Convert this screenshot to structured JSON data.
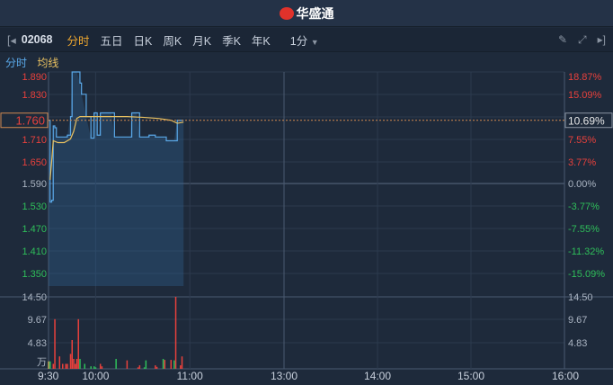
{
  "header": {
    "brand": "华盛通"
  },
  "toolbar": {
    "code": "02068",
    "tabs": [
      "分时",
      "五日",
      "日K",
      "周K",
      "月K",
      "季K",
      "年K"
    ],
    "active": "分时",
    "interval": "1分",
    "icons": [
      "collapse-left-icon",
      "pencil-icon",
      "fullscreen-icon",
      "expand-right-icon"
    ]
  },
  "legend": {
    "price": "分时",
    "avg": "均线"
  },
  "colors": {
    "up": "#e8413c",
    "down": "#2fbf5a",
    "price_line": "#5aa8e8",
    "avg_line": "#e8c060",
    "accent": "#f0a830"
  },
  "chart_data": {
    "type": "line",
    "price_axis": {
      "labels": [
        "1.890",
        "1.830",
        "1.770",
        "1.710",
        "1.650",
        "1.590",
        "1.530",
        "1.470",
        "1.410",
        "1.350"
      ],
      "prev_close": 1.59,
      "range": [
        1.35,
        1.9
      ]
    },
    "pct_axis": {
      "labels": [
        "18.87%",
        "15.09%",
        "11.32%",
        "7.55%",
        "3.77%",
        "0.00%",
        "-3.77%",
        "-7.55%",
        "-11.32%",
        "-15.09%"
      ]
    },
    "current": {
      "price": "1.760",
      "pct": "10.69%"
    },
    "x_ticks": [
      "9:30",
      "10:00",
      "11:00",
      "13:00",
      "14:00",
      "15:00",
      "16:00"
    ],
    "price": [
      [
        "9:30",
        1.76
      ],
      [
        "9:31",
        1.54
      ],
      [
        "9:32",
        1.545
      ],
      [
        "9:33",
        1.745
      ],
      [
        "9:34",
        1.74
      ],
      [
        "9:35",
        1.715
      ],
      [
        "9:40",
        1.715
      ],
      [
        "9:42",
        1.72
      ],
      [
        "9:44",
        1.77
      ],
      [
        "9:45",
        1.89
      ],
      [
        "9:48",
        1.89
      ],
      [
        "9:50",
        1.86
      ],
      [
        "9:51",
        1.83
      ],
      [
        "9:54",
        1.77
      ],
      [
        "9:57",
        1.712
      ],
      [
        "9:59",
        1.78
      ],
      [
        "10:00",
        1.78
      ],
      [
        "10:01",
        1.72
      ],
      [
        "10:02",
        1.72
      ],
      [
        "10:03",
        1.78
      ],
      [
        "10:10",
        1.78
      ],
      [
        "10:12",
        1.715
      ],
      [
        "10:22",
        1.715
      ],
      [
        "10:23",
        1.78
      ],
      [
        "10:26",
        1.78
      ],
      [
        "10:28",
        1.715
      ],
      [
        "10:32",
        1.715
      ],
      [
        "10:34",
        1.72
      ],
      [
        "10:36",
        1.72
      ],
      [
        "10:38",
        1.715
      ],
      [
        "10:44",
        1.715
      ],
      [
        "10:45",
        1.705
      ],
      [
        "10:50",
        1.705
      ],
      [
        "10:52",
        1.76
      ],
      [
        "10:56",
        1.76
      ]
    ],
    "avg": [
      [
        "9:31",
        1.6
      ],
      [
        "9:32",
        1.65
      ],
      [
        "9:33",
        1.705
      ],
      [
        "9:36",
        1.7
      ],
      [
        "9:40",
        1.7
      ],
      [
        "9:44",
        1.71
      ],
      [
        "9:46",
        1.73
      ],
      [
        "9:48",
        1.765
      ],
      [
        "9:50",
        1.77
      ],
      [
        "10:20",
        1.77
      ],
      [
        "10:30",
        1.768
      ],
      [
        "10:40",
        1.765
      ],
      [
        "10:48",
        1.76
      ],
      [
        "10:52",
        1.752
      ],
      [
        "10:56",
        1.755
      ]
    ],
    "volume_axis": {
      "labels": [
        "14.50",
        "9.67",
        "4.83"
      ],
      "unit": "万",
      "max": 14.5
    },
    "volume": [
      [
        "9:30",
        1.5,
        "flat"
      ],
      [
        "9:31",
        1.5,
        "down"
      ],
      [
        "9:33",
        1,
        "up"
      ],
      [
        "9:34",
        10,
        "up"
      ],
      [
        "9:37",
        2.5,
        "up"
      ],
      [
        "9:39",
        1,
        "up"
      ],
      [
        "9:41",
        1,
        "up"
      ],
      [
        "9:42",
        1,
        "up"
      ],
      [
        "9:44",
        3,
        "up"
      ],
      [
        "9:45",
        5.8,
        "up"
      ],
      [
        "9:46",
        2,
        "up"
      ],
      [
        "9:47",
        1,
        "up"
      ],
      [
        "9:48",
        2,
        "up"
      ],
      [
        "9:49",
        10,
        "up"
      ],
      [
        "9:50",
        2,
        "down"
      ],
      [
        "9:53",
        1,
        "down"
      ],
      [
        "9:57",
        0.5,
        "down"
      ],
      [
        "9:59",
        0.5,
        "down"
      ],
      [
        "10:00",
        0.3,
        "down"
      ],
      [
        "10:03",
        1,
        "up"
      ],
      [
        "10:04",
        0.5,
        "up"
      ],
      [
        "10:13",
        2,
        "down"
      ],
      [
        "10:20",
        1.7,
        "up"
      ],
      [
        "10:27",
        0.3,
        "up"
      ],
      [
        "10:28",
        0.7,
        "up"
      ],
      [
        "10:31",
        0.3,
        "down"
      ],
      [
        "10:32",
        1.7,
        "down"
      ],
      [
        "10:38",
        0.7,
        "up"
      ],
      [
        "10:39",
        0.4,
        "up"
      ],
      [
        "10:43",
        2,
        "down"
      ],
      [
        "10:44",
        1.8,
        "up"
      ],
      [
        "10:48",
        1.8,
        "up"
      ],
      [
        "10:50",
        1.7,
        "down"
      ],
      [
        "10:51",
        14.5,
        "up"
      ],
      [
        "10:54",
        0.7,
        "up"
      ],
      [
        "10:55",
        2.5,
        "up"
      ]
    ]
  }
}
